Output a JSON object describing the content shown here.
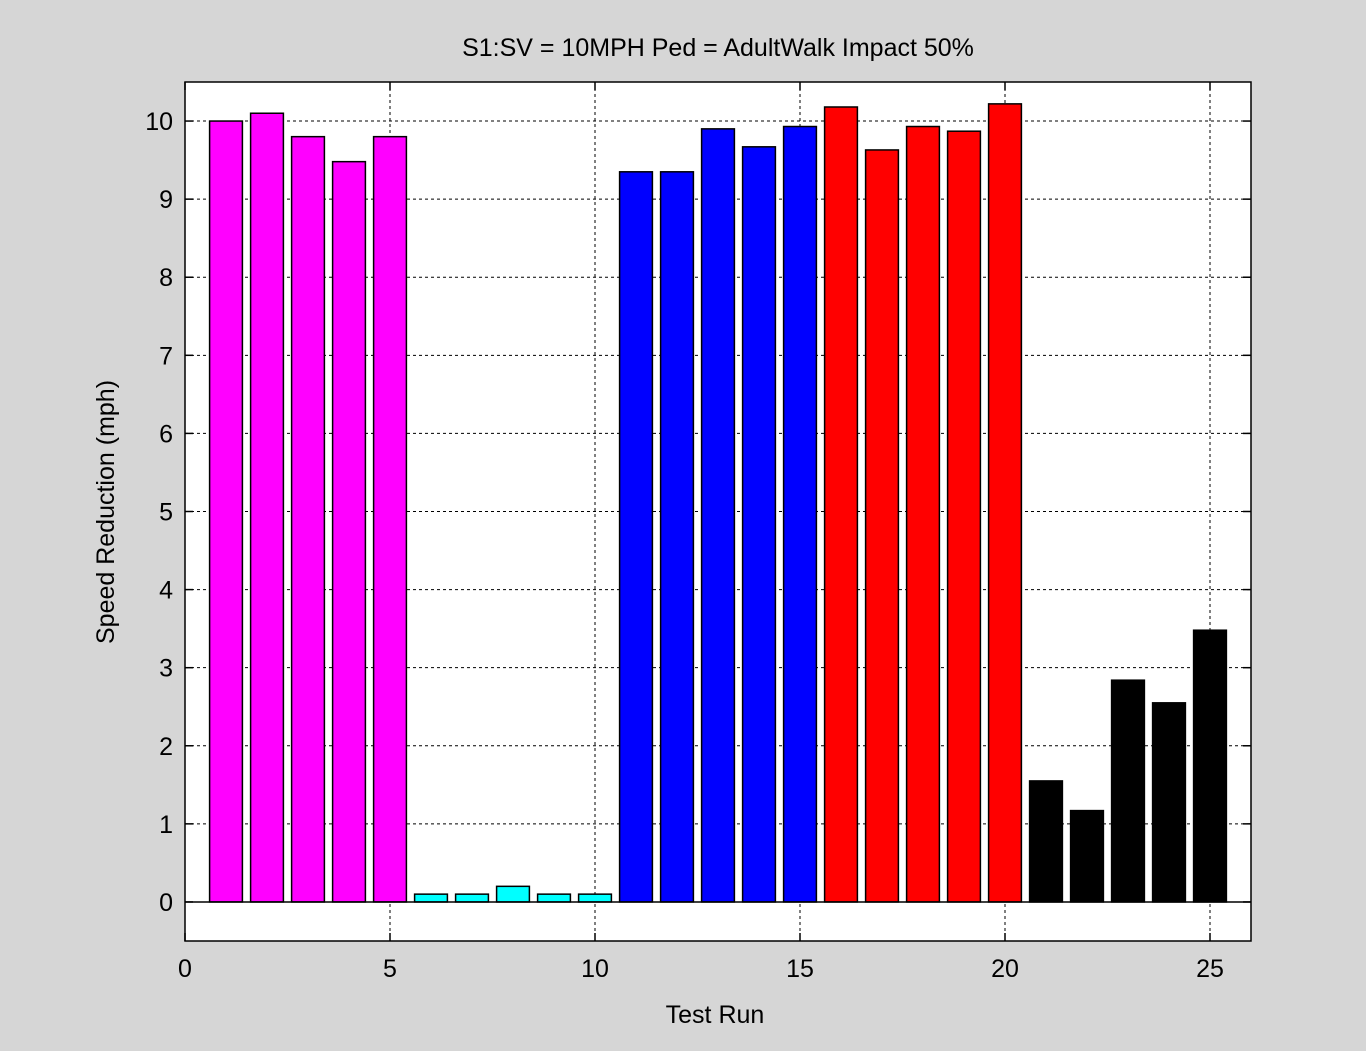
{
  "figure": {
    "background": "#d6d6d6"
  },
  "chart_data": {
    "type": "bar",
    "title": "S1:SV = 10MPH Ped = AdultWalk Impact 50%",
    "xlabel": "Test Run",
    "ylabel": "Speed Reduction (mph)",
    "xlim": [
      0,
      26
    ],
    "ylim": [
      -0.5,
      10.5
    ],
    "xticks": [
      0,
      5,
      10,
      15,
      20,
      25
    ],
    "yticks": [
      0,
      1,
      2,
      3,
      4,
      5,
      6,
      7,
      8,
      9,
      10
    ],
    "grid": true,
    "legend": "none",
    "bar_width": 0.8,
    "series": [
      {
        "color": "#ff00ff",
        "x": [
          1,
          2,
          3,
          4,
          5
        ],
        "values": [
          10.0,
          10.1,
          9.8,
          9.48,
          9.8
        ]
      },
      {
        "color": "#00ffff",
        "x": [
          6,
          7,
          8,
          9,
          10
        ],
        "values": [
          0.1,
          0.1,
          0.2,
          0.1,
          0.1
        ]
      },
      {
        "color": "#0000ff",
        "x": [
          11,
          12,
          13,
          14,
          15
        ],
        "values": [
          9.35,
          9.35,
          9.9,
          9.67,
          9.93
        ]
      },
      {
        "color": "#ff0000",
        "x": [
          16,
          17,
          18,
          19,
          20
        ],
        "values": [
          10.18,
          9.63,
          9.93,
          9.87,
          10.22
        ]
      },
      {
        "color": "#000000",
        "x": [
          21,
          22,
          23,
          24,
          25
        ],
        "values": [
          1.55,
          1.17,
          2.84,
          2.55,
          3.48
        ]
      }
    ]
  }
}
